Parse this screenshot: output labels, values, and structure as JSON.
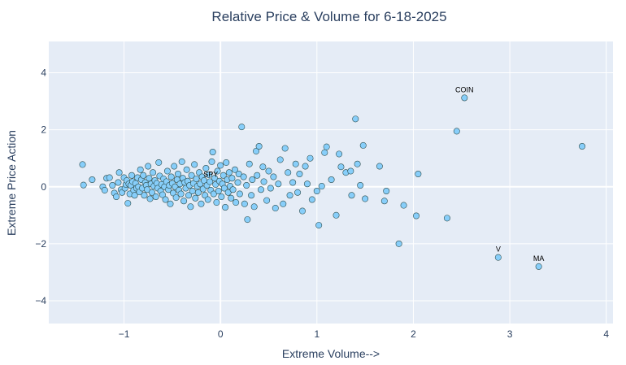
{
  "chart_data": {
    "type": "scatter",
    "title": "Relative Price & Volume for 6-18-2025",
    "xlabel": "Extreme Volume-->",
    "ylabel": "Extreme Price Action",
    "xlim": [
      -1.78,
      4.07
    ],
    "ylim": [
      -4.8,
      5.1
    ],
    "xticks": [
      -1,
      0,
      1,
      2,
      3,
      4
    ],
    "xtick_labels": [
      "−1",
      "0",
      "1",
      "2",
      "3",
      "4"
    ],
    "yticks": [
      -4,
      -2,
      0,
      2,
      4
    ],
    "ytick_labels": [
      "−4",
      "−2",
      "0",
      "2",
      "4"
    ],
    "grid": true,
    "colors": {
      "plot_bg": "#e5ecf6",
      "marker": "#87cefa",
      "marker_edge": "#2f4f4f",
      "text": "#2a3f5f",
      "grid": "#ffffff"
    },
    "annotations": [
      {
        "text": "COIN",
        "x": 2.53,
        "y": 3.12
      },
      {
        "text": "SPY",
        "x": -0.1,
        "y": 0.15
      },
      {
        "text": "V",
        "x": 2.88,
        "y": -2.48
      },
      {
        "text": "MA",
        "x": 3.3,
        "y": -2.8
      }
    ],
    "points": [
      [
        -1.43,
        0.78
      ],
      [
        -1.42,
        0.06
      ],
      [
        -1.33,
        0.25
      ],
      [
        -1.22,
        0.0
      ],
      [
        -1.2,
        -0.12
      ],
      [
        -1.18,
        0.3
      ],
      [
        -1.15,
        0.32
      ],
      [
        -1.12,
        0.05
      ],
      [
        -1.1,
        -0.22
      ],
      [
        -1.08,
        -0.35
      ],
      [
        -1.06,
        0.15
      ],
      [
        -1.05,
        0.5
      ],
      [
        -1.03,
        -0.1
      ],
      [
        -1.02,
        -0.2
      ],
      [
        -1.0,
        0.32
      ],
      [
        -0.99,
        -0.05
      ],
      [
        -0.98,
        0.08
      ],
      [
        -0.97,
        0.22
      ],
      [
        -0.96,
        -0.58
      ],
      [
        -0.95,
        0.1
      ],
      [
        -0.94,
        -0.25
      ],
      [
        -0.93,
        0.05
      ],
      [
        -0.92,
        0.4
      ],
      [
        -0.91,
        0.18
      ],
      [
        -0.9,
        -0.12
      ],
      [
        -0.89,
        -0.3
      ],
      [
        -0.88,
        0.12
      ],
      [
        -0.87,
        -0.05
      ],
      [
        -0.86,
        0.32
      ],
      [
        -0.85,
        0.0
      ],
      [
        -0.84,
        -0.18
      ],
      [
        -0.83,
        0.6
      ],
      [
        -0.82,
        0.25
      ],
      [
        -0.81,
        -0.05
      ],
      [
        -0.8,
        0.4
      ],
      [
        -0.79,
        -0.3
      ],
      [
        -0.78,
        0.15
      ],
      [
        -0.77,
        0.05
      ],
      [
        -0.76,
        -0.1
      ],
      [
        -0.75,
        0.72
      ],
      [
        -0.74,
        0.3
      ],
      [
        -0.73,
        -0.42
      ],
      [
        -0.72,
        0.1
      ],
      [
        -0.71,
        -0.2
      ],
      [
        -0.7,
        0.5
      ],
      [
        -0.69,
        0.02
      ],
      [
        -0.68,
        0.22
      ],
      [
        -0.67,
        -0.35
      ],
      [
        -0.66,
        0.12
      ],
      [
        -0.65,
        -0.05
      ],
      [
        -0.64,
        0.85
      ],
      [
        -0.63,
        0.38
      ],
      [
        -0.62,
        -0.15
      ],
      [
        -0.61,
        0.08
      ],
      [
        -0.6,
        -0.28
      ],
      [
        -0.59,
        0.28
      ],
      [
        -0.58,
        0.0
      ],
      [
        -0.57,
        -0.45
      ],
      [
        -0.56,
        0.18
      ],
      [
        -0.55,
        0.55
      ],
      [
        -0.54,
        -0.1
      ],
      [
        -0.53,
        0.05
      ],
      [
        -0.52,
        -0.6
      ],
      [
        -0.51,
        0.35
      ],
      [
        -0.5,
        0.12
      ],
      [
        -0.49,
        -0.22
      ],
      [
        -0.48,
        0.72
      ],
      [
        -0.47,
        0.0
      ],
      [
        -0.46,
        -0.38
      ],
      [
        -0.45,
        0.25
      ],
      [
        -0.44,
        0.45
      ],
      [
        -0.43,
        -0.12
      ],
      [
        -0.42,
        0.1
      ],
      [
        -0.41,
        -0.25
      ],
      [
        -0.4,
        0.88
      ],
      [
        -0.39,
        0.3
      ],
      [
        -0.38,
        -0.5
      ],
      [
        -0.37,
        0.15
      ],
      [
        -0.36,
        -0.05
      ],
      [
        -0.35,
        0.6
      ],
      [
        -0.34,
        0.2
      ],
      [
        -0.33,
        -0.3
      ],
      [
        -0.32,
        0.05
      ],
      [
        -0.31,
        -0.7
      ],
      [
        -0.3,
        0.4
      ],
      [
        -0.29,
        -0.15
      ],
      [
        -0.28,
        0.12
      ],
      [
        -0.27,
        0.78
      ],
      [
        -0.26,
        -0.4
      ],
      [
        -0.25,
        0.28
      ],
      [
        -0.24,
        0.02
      ],
      [
        -0.23,
        -0.2
      ],
      [
        -0.22,
        0.5
      ],
      [
        -0.21,
        0.1
      ],
      [
        -0.2,
        -0.6
      ],
      [
        -0.19,
        0.35
      ],
      [
        -0.18,
        -0.08
      ],
      [
        -0.17,
        0.22
      ],
      [
        -0.16,
        -0.3
      ],
      [
        -0.15,
        0.65
      ],
      [
        -0.14,
        0.05
      ],
      [
        -0.13,
        -0.45
      ],
      [
        -0.12,
        0.42
      ],
      [
        -0.11,
        0.18
      ],
      [
        -0.1,
        -0.12
      ],
      [
        -0.09,
        0.88
      ],
      [
        -0.08,
        1.22
      ],
      [
        -0.07,
        -0.25
      ],
      [
        -0.06,
        0.3
      ],
      [
        -0.05,
        0.08
      ],
      [
        -0.04,
        -0.55
      ],
      [
        -0.03,
        0.55
      ],
      [
        -0.02,
        -0.15
      ],
      [
        -0.01,
        0.2
      ],
      [
        0.0,
        0.75
      ],
      [
        0.01,
        -0.35
      ],
      [
        0.02,
        0.1
      ],
      [
        0.03,
        0.4
      ],
      [
        0.04,
        -0.05
      ],
      [
        0.05,
        -0.72
      ],
      [
        0.06,
        0.85
      ],
      [
        0.07,
        0.25
      ],
      [
        0.08,
        -0.2
      ],
      [
        0.09,
        0.5
      ],
      [
        0.1,
        0.02
      ],
      [
        0.11,
        -0.4
      ],
      [
        0.12,
        0.3
      ],
      [
        0.13,
        -0.1
      ],
      [
        0.15,
        0.6
      ],
      [
        0.16,
        -0.55
      ],
      [
        0.18,
        0.15
      ],
      [
        0.19,
        0.45
      ],
      [
        0.2,
        -0.25
      ],
      [
        0.22,
        2.1
      ],
      [
        0.24,
        0.35
      ],
      [
        0.25,
        -0.6
      ],
      [
        0.27,
        0.05
      ],
      [
        0.28,
        -1.15
      ],
      [
        0.3,
        0.8
      ],
      [
        0.32,
        -0.3
      ],
      [
        0.33,
        0.25
      ],
      [
        0.35,
        -0.7
      ],
      [
        0.37,
        1.25
      ],
      [
        0.38,
        0.4
      ],
      [
        0.4,
        1.42
      ],
      [
        0.42,
        -0.1
      ],
      [
        0.44,
        0.7
      ],
      [
        0.45,
        0.18
      ],
      [
        0.48,
        -0.48
      ],
      [
        0.5,
        0.55
      ],
      [
        0.52,
        -0.05
      ],
      [
        0.55,
        0.35
      ],
      [
        0.57,
        -0.75
      ],
      [
        0.6,
        0.1
      ],
      [
        0.62,
        0.95
      ],
      [
        0.65,
        -0.6
      ],
      [
        0.67,
        1.35
      ],
      [
        0.7,
        0.5
      ],
      [
        0.72,
        -0.3
      ],
      [
        0.75,
        0.15
      ],
      [
        0.78,
        0.8
      ],
      [
        0.8,
        -0.2
      ],
      [
        0.82,
        0.45
      ],
      [
        0.85,
        -0.85
      ],
      [
        0.88,
        0.72
      ],
      [
        0.9,
        0.1
      ],
      [
        0.93,
        1.0
      ],
      [
        0.95,
        -0.45
      ],
      [
        1.0,
        -0.15
      ],
      [
        1.02,
        -1.35
      ],
      [
        1.05,
        0.02
      ],
      [
        1.08,
        1.2
      ],
      [
        1.1,
        1.4
      ],
      [
        1.15,
        0.25
      ],
      [
        1.2,
        -1.0
      ],
      [
        1.23,
        1.15
      ],
      [
        1.25,
        0.7
      ],
      [
        1.3,
        0.5
      ],
      [
        1.35,
        0.55
      ],
      [
        1.36,
        -0.3
      ],
      [
        1.4,
        2.38
      ],
      [
        1.42,
        0.8
      ],
      [
        1.45,
        0.05
      ],
      [
        1.48,
        1.45
      ],
      [
        1.5,
        -0.42
      ],
      [
        1.65,
        0.72
      ],
      [
        1.7,
        -0.5
      ],
      [
        1.72,
        -0.15
      ],
      [
        1.85,
        -2.0
      ],
      [
        1.9,
        -0.65
      ],
      [
        2.03,
        -1.02
      ],
      [
        2.05,
        0.45
      ],
      [
        2.35,
        -1.1
      ],
      [
        2.45,
        1.95
      ],
      [
        2.53,
        3.12
      ],
      [
        2.88,
        -2.48
      ],
      [
        3.3,
        -2.8
      ],
      [
        3.75,
        1.42
      ]
    ]
  }
}
